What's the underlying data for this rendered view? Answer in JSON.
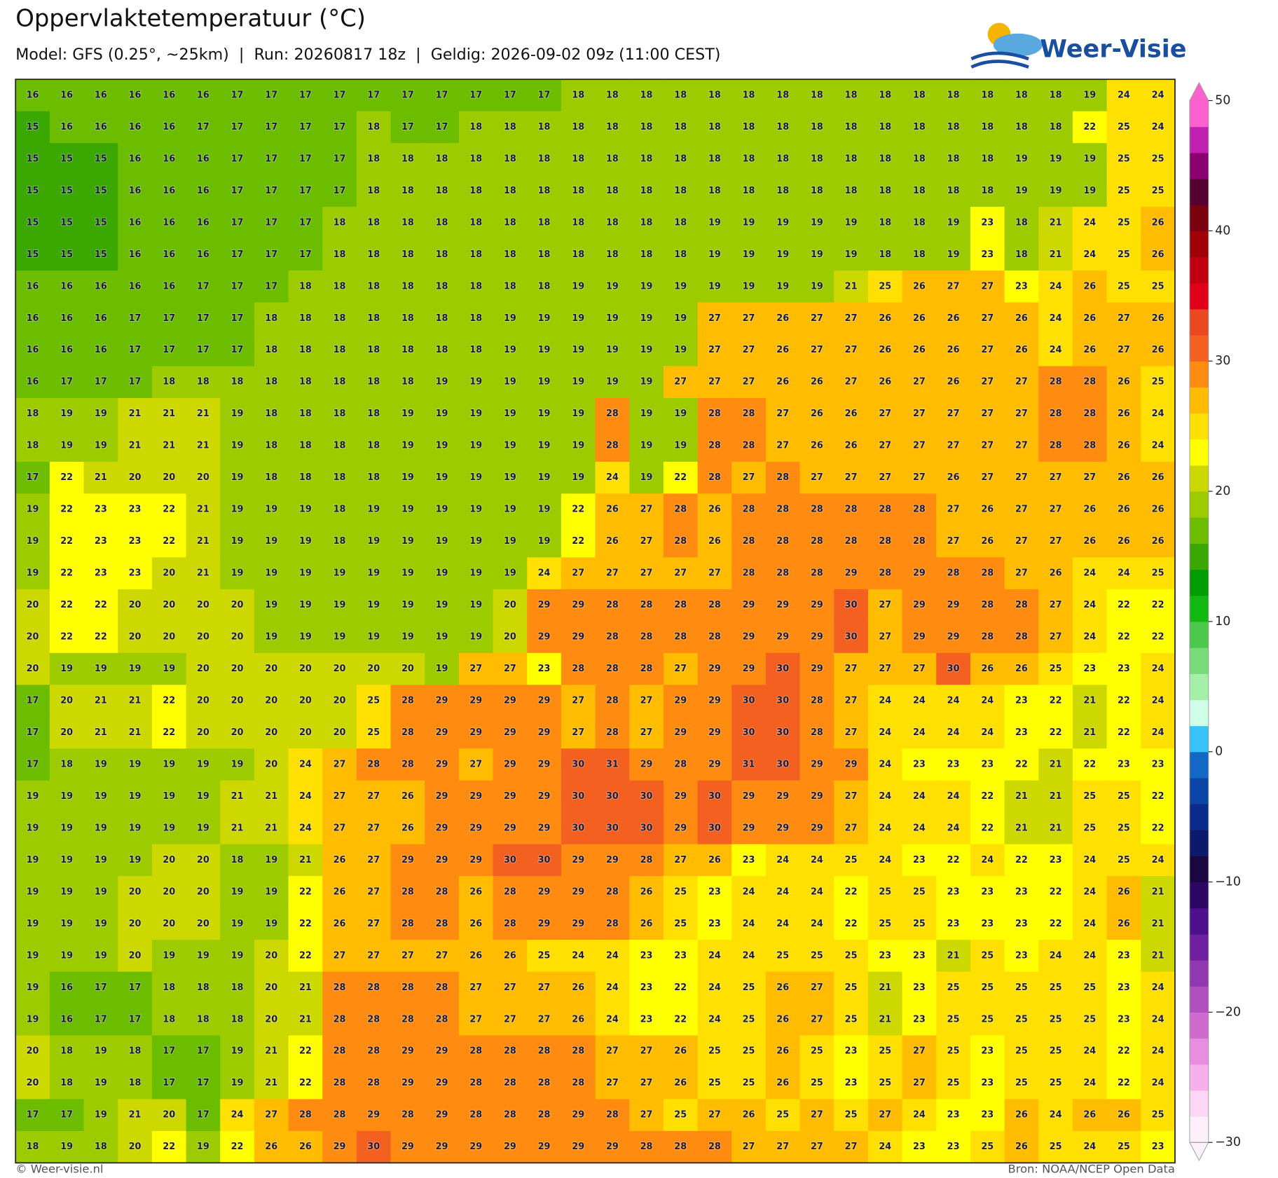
{
  "title": "Oppervlaktetemperatuur (°C)",
  "subtitle": "Model: GFS (0.25°, ~25km)  |  Run: 20260817 18z  |  Geldig: 2026-09-02 09z (11:00 CEST)",
  "logo": "Weer-Visie",
  "footer_left": "© Weer-visie.nl",
  "footer_right": "Bron: NOAA/NCEP Open Data",
  "chart_data": {
    "type": "heatmap",
    "values": [
      [
        16,
        16,
        16,
        16,
        16,
        16,
        17,
        17,
        17,
        17,
        17,
        17,
        17,
        17,
        17,
        17,
        18,
        18,
        18,
        18,
        18,
        18,
        18,
        18,
        18,
        18,
        18,
        18,
        18,
        18,
        18,
        19,
        24,
        24
      ],
      [
        15,
        16,
        16,
        16,
        16,
        17,
        17,
        17,
        17,
        17,
        18,
        17,
        17,
        18,
        18,
        18,
        18,
        18,
        18,
        18,
        18,
        18,
        18,
        18,
        18,
        18,
        18,
        18,
        18,
        18,
        18,
        22,
        25,
        24
      ],
      [
        15,
        15,
        15,
        16,
        16,
        16,
        17,
        17,
        17,
        17,
        18,
        18,
        18,
        18,
        18,
        18,
        18,
        18,
        18,
        18,
        18,
        18,
        18,
        18,
        18,
        18,
        18,
        18,
        18,
        19,
        19,
        19,
        25,
        25
      ],
      [
        15,
        15,
        15,
        16,
        16,
        16,
        17,
        17,
        17,
        17,
        18,
        18,
        18,
        18,
        18,
        18,
        18,
        18,
        18,
        18,
        18,
        18,
        18,
        18,
        18,
        18,
        18,
        18,
        18,
        19,
        19,
        19,
        25,
        25
      ],
      [
        15,
        15,
        15,
        16,
        16,
        16,
        17,
        17,
        17,
        18,
        18,
        18,
        18,
        18,
        18,
        18,
        18,
        18,
        18,
        18,
        19,
        19,
        19,
        19,
        19,
        18,
        18,
        19,
        23,
        18,
        21,
        24,
        25,
        26
      ],
      [
        15,
        15,
        15,
        16,
        16,
        16,
        17,
        17,
        17,
        18,
        18,
        18,
        18,
        18,
        18,
        18,
        18,
        18,
        18,
        18,
        19,
        19,
        19,
        19,
        19,
        18,
        18,
        19,
        23,
        18,
        21,
        24,
        25,
        26
      ],
      [
        16,
        16,
        16,
        16,
        16,
        17,
        17,
        17,
        18,
        18,
        18,
        18,
        18,
        18,
        18,
        18,
        19,
        19,
        19,
        19,
        19,
        19,
        19,
        19,
        21,
        25,
        26,
        27,
        27,
        23,
        24,
        26,
        25,
        25
      ],
      [
        16,
        16,
        16,
        17,
        17,
        17,
        17,
        18,
        18,
        18,
        18,
        18,
        18,
        18,
        19,
        19,
        19,
        19,
        19,
        19,
        27,
        27,
        26,
        27,
        27,
        26,
        26,
        26,
        27,
        26,
        24,
        26,
        27,
        26
      ],
      [
        16,
        16,
        16,
        17,
        17,
        17,
        17,
        18,
        18,
        18,
        18,
        18,
        18,
        18,
        19,
        19,
        19,
        19,
        19,
        19,
        27,
        27,
        26,
        27,
        27,
        26,
        26,
        26,
        27,
        26,
        24,
        26,
        27,
        26
      ],
      [
        16,
        17,
        17,
        17,
        18,
        18,
        18,
        18,
        18,
        18,
        18,
        18,
        19,
        19,
        19,
        19,
        19,
        19,
        19,
        27,
        27,
        27,
        26,
        26,
        27,
        26,
        27,
        26,
        27,
        27,
        28,
        28,
        26,
        25
      ],
      [
        18,
        19,
        19,
        21,
        21,
        21,
        19,
        18,
        18,
        18,
        18,
        19,
        19,
        19,
        19,
        19,
        19,
        28,
        19,
        19,
        28,
        28,
        27,
        26,
        26,
        27,
        27,
        27,
        27,
        27,
        28,
        28,
        26,
        24
      ],
      [
        18,
        19,
        19,
        21,
        21,
        21,
        19,
        18,
        18,
        18,
        18,
        19,
        19,
        19,
        19,
        19,
        19,
        28,
        19,
        19,
        28,
        28,
        27,
        26,
        26,
        27,
        27,
        27,
        27,
        27,
        28,
        28,
        26,
        24
      ],
      [
        17,
        22,
        21,
        20,
        20,
        20,
        19,
        18,
        18,
        18,
        18,
        19,
        19,
        19,
        19,
        19,
        19,
        24,
        19,
        22,
        28,
        27,
        28,
        27,
        27,
        27,
        27,
        26,
        27,
        27,
        27,
        27,
        26,
        26
      ],
      [
        19,
        22,
        23,
        23,
        22,
        21,
        19,
        19,
        19,
        18,
        19,
        19,
        19,
        19,
        19,
        19,
        22,
        26,
        27,
        28,
        26,
        28,
        28,
        28,
        28,
        28,
        28,
        27,
        26,
        27,
        27,
        26,
        26,
        26
      ],
      [
        19,
        22,
        23,
        23,
        22,
        21,
        19,
        19,
        19,
        18,
        19,
        19,
        19,
        19,
        19,
        19,
        22,
        26,
        27,
        28,
        26,
        28,
        28,
        28,
        28,
        28,
        28,
        27,
        26,
        27,
        27,
        26,
        26,
        26
      ],
      [
        19,
        22,
        23,
        23,
        20,
        21,
        19,
        19,
        19,
        19,
        19,
        19,
        19,
        19,
        19,
        24,
        27,
        27,
        27,
        27,
        27,
        28,
        28,
        28,
        29,
        28,
        29,
        28,
        28,
        27,
        26,
        24,
        24,
        25
      ],
      [
        20,
        22,
        22,
        20,
        20,
        20,
        20,
        19,
        19,
        19,
        19,
        19,
        19,
        19,
        20,
        29,
        29,
        28,
        28,
        28,
        28,
        29,
        29,
        29,
        30,
        27,
        29,
        29,
        28,
        28,
        27,
        24,
        22,
        22
      ],
      [
        20,
        22,
        22,
        20,
        20,
        20,
        20,
        19,
        19,
        19,
        19,
        19,
        19,
        19,
        20,
        29,
        29,
        28,
        28,
        28,
        28,
        29,
        29,
        29,
        30,
        27,
        29,
        29,
        28,
        28,
        27,
        24,
        22,
        22
      ],
      [
        20,
        19,
        19,
        19,
        19,
        20,
        20,
        20,
        20,
        20,
        20,
        20,
        19,
        27,
        27,
        23,
        28,
        28,
        28,
        27,
        29,
        29,
        30,
        29,
        27,
        27,
        27,
        30,
        26,
        26,
        25,
        23,
        23,
        24
      ],
      [
        17,
        20,
        21,
        21,
        22,
        20,
        20,
        20,
        20,
        20,
        25,
        28,
        29,
        29,
        29,
        29,
        27,
        28,
        27,
        29,
        29,
        30,
        30,
        28,
        27,
        24,
        24,
        24,
        24,
        23,
        22,
        21,
        22,
        24
      ],
      [
        17,
        20,
        21,
        21,
        22,
        20,
        20,
        20,
        20,
        20,
        25,
        28,
        29,
        29,
        29,
        29,
        27,
        28,
        27,
        29,
        29,
        30,
        30,
        28,
        27,
        24,
        24,
        24,
        24,
        23,
        22,
        21,
        22,
        24
      ],
      [
        17,
        18,
        19,
        19,
        19,
        19,
        19,
        20,
        24,
        27,
        28,
        28,
        29,
        27,
        29,
        29,
        30,
        31,
        29,
        28,
        29,
        31,
        30,
        29,
        29,
        24,
        23,
        23,
        23,
        22,
        21,
        22,
        23,
        23
      ],
      [
        19,
        19,
        19,
        19,
        19,
        19,
        21,
        21,
        24,
        27,
        27,
        26,
        29,
        29,
        29,
        29,
        30,
        30,
        30,
        29,
        30,
        29,
        29,
        29,
        27,
        24,
        24,
        24,
        22,
        21,
        21,
        25,
        25,
        22
      ],
      [
        19,
        19,
        19,
        19,
        19,
        19,
        21,
        21,
        24,
        27,
        27,
        26,
        29,
        29,
        29,
        29,
        30,
        30,
        30,
        29,
        30,
        29,
        29,
        29,
        27,
        24,
        24,
        24,
        22,
        21,
        21,
        25,
        25,
        22
      ],
      [
        19,
        19,
        19,
        19,
        20,
        20,
        18,
        19,
        21,
        26,
        27,
        29,
        29,
        29,
        30,
        30,
        29,
        29,
        28,
        27,
        26,
        23,
        24,
        24,
        25,
        24,
        23,
        22,
        24,
        22,
        23,
        24,
        25,
        24
      ],
      [
        19,
        19,
        19,
        20,
        20,
        20,
        19,
        19,
        22,
        26,
        27,
        28,
        28,
        26,
        28,
        29,
        29,
        28,
        26,
        25,
        23,
        24,
        24,
        24,
        22,
        25,
        25,
        23,
        23,
        23,
        22,
        24,
        26,
        21
      ],
      [
        19,
        19,
        19,
        20,
        20,
        20,
        19,
        19,
        22,
        26,
        27,
        28,
        28,
        26,
        28,
        29,
        29,
        28,
        26,
        25,
        23,
        24,
        24,
        24,
        22,
        25,
        25,
        23,
        23,
        23,
        22,
        24,
        26,
        21
      ],
      [
        19,
        19,
        19,
        20,
        19,
        19,
        19,
        20,
        22,
        27,
        27,
        27,
        27,
        26,
        26,
        25,
        24,
        24,
        23,
        23,
        24,
        24,
        25,
        25,
        25,
        23,
        23,
        21,
        25,
        23,
        24,
        24,
        23,
        21
      ],
      [
        19,
        16,
        17,
        17,
        18,
        18,
        18,
        20,
        21,
        28,
        28,
        28,
        28,
        27,
        27,
        27,
        26,
        24,
        23,
        22,
        24,
        25,
        26,
        27,
        25,
        21,
        23,
        25,
        25,
        25,
        25,
        25,
        23,
        24
      ],
      [
        19,
        16,
        17,
        17,
        18,
        18,
        18,
        20,
        21,
        28,
        28,
        28,
        28,
        27,
        27,
        27,
        26,
        24,
        23,
        22,
        24,
        25,
        26,
        27,
        25,
        21,
        23,
        25,
        25,
        25,
        25,
        25,
        23,
        24
      ],
      [
        20,
        18,
        19,
        18,
        17,
        17,
        19,
        21,
        22,
        28,
        28,
        29,
        29,
        28,
        28,
        28,
        28,
        27,
        27,
        26,
        25,
        25,
        26,
        25,
        23,
        25,
        27,
        25,
        23,
        25,
        25,
        24,
        22,
        24
      ],
      [
        20,
        18,
        19,
        18,
        17,
        17,
        19,
        21,
        22,
        28,
        28,
        29,
        29,
        28,
        28,
        28,
        28,
        27,
        27,
        26,
        25,
        25,
        26,
        25,
        23,
        25,
        27,
        25,
        23,
        25,
        25,
        24,
        22,
        24
      ],
      [
        17,
        17,
        19,
        21,
        20,
        17,
        24,
        27,
        28,
        28,
        29,
        28,
        29,
        28,
        28,
        28,
        29,
        28,
        27,
        25,
        27,
        26,
        25,
        27,
        25,
        27,
        24,
        23,
        23,
        26,
        24,
        26,
        26,
        25
      ],
      [
        18,
        19,
        18,
        20,
        22,
        19,
        22,
        26,
        26,
        29,
        30,
        29,
        29,
        29,
        29,
        29,
        29,
        29,
        28,
        28,
        28,
        27,
        27,
        27,
        27,
        24,
        23,
        23,
        25,
        26,
        25,
        24,
        25,
        23
      ]
    ],
    "clim": [
      -30,
      50
    ],
    "cticks": [
      50,
      40,
      30,
      20,
      10,
      0,
      {
        "value": -10,
        "label": "−10"
      },
      {
        "value": -20,
        "label": "−20"
      },
      {
        "value": -30,
        "label": "−30"
      }
    ],
    "colors": [
      "#fdf0fb",
      "#fcd6f5",
      "#f7b0ec",
      "#e88ee0",
      "#cf6bcf",
      "#b04fbf",
      "#9038b0",
      "#6e20a0",
      "#4e0f8c",
      "#2e0663",
      "#1a0640",
      "#0d1a6b",
      "#0a2a8c",
      "#0b45a8",
      "#1268c4",
      "#37c3f5",
      "#cfffe6",
      "#a4f0a8",
      "#78dc78",
      "#4cc84c",
      "#10b810",
      "#009c00",
      "#3aa800",
      "#6cbc00",
      "#9ccb00",
      "#cdd800",
      "#ffff00",
      "#ffe000",
      "#ffbc00",
      "#ff8c10",
      "#f46020",
      "#ea4820",
      "#e00018",
      "#c00010",
      "#a00008",
      "#7a0010",
      "#550033",
      "#8a0070",
      "#c020b0",
      "#ff60d0"
    ]
  }
}
